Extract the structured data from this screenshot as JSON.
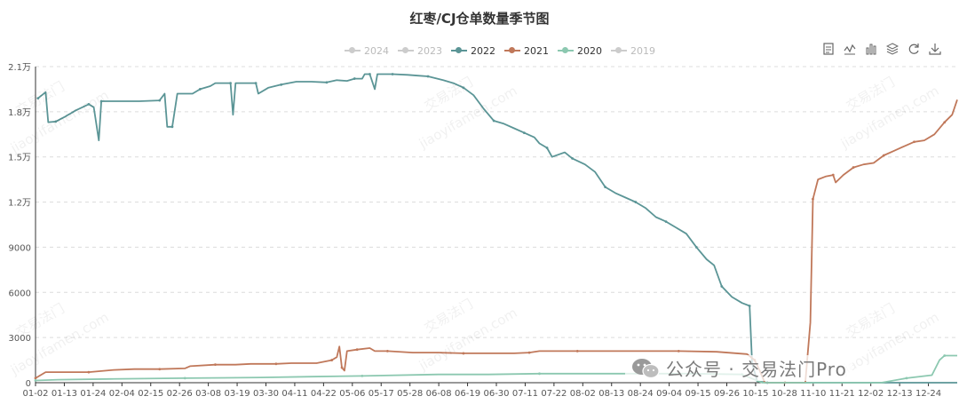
{
  "chart_data": {
    "type": "line",
    "title": "红枣/CJ仓单数量季节图",
    "xlabel": "",
    "ylabel": "",
    "ylim": [
      0,
      21000
    ],
    "y_ticks": [
      0,
      3000,
      6000,
      9000,
      12000,
      15000,
      18000,
      21000
    ],
    "y_tick_labels": [
      "0",
      "3000",
      "6000",
      "9000",
      "1.2万",
      "1.5万",
      "1.8万",
      "2.1万"
    ],
    "x_range_days": [
      1,
      365
    ],
    "x_tick_labels": [
      "01-02",
      "01-13",
      "01-24",
      "02-04",
      "02-15",
      "02-26",
      "03-08",
      "03-19",
      "03-30",
      "04-11",
      "04-22",
      "05-06",
      "05-17",
      "05-28",
      "06-08",
      "06-19",
      "06-30",
      "07-11",
      "07-22",
      "08-02",
      "08-13",
      "08-24",
      "09-04",
      "09-15",
      "09-26",
      "10-15",
      "10-28",
      "11-10",
      "11-21",
      "12-02",
      "12-13",
      "12-24"
    ],
    "grid": true,
    "legend_position": "top-center",
    "series": [
      {
        "name": "2024",
        "visible": false,
        "color": "#cccccc",
        "points": []
      },
      {
        "name": "2023",
        "visible": false,
        "color": "#cccccc",
        "points": []
      },
      {
        "name": "2022",
        "visible": true,
        "color": "#5b9596",
        "points": [
          [
            2,
            18900
          ],
          [
            5,
            19300
          ],
          [
            6,
            17300
          ],
          [
            9,
            17350
          ],
          [
            13,
            17700
          ],
          [
            17,
            18100
          ],
          [
            22,
            18500
          ],
          [
            24,
            18300
          ],
          [
            26,
            16100
          ],
          [
            27,
            18700
          ],
          [
            35,
            18700
          ],
          [
            42,
            18700
          ],
          [
            50,
            18750
          ],
          [
            52,
            19200
          ],
          [
            53,
            17000
          ],
          [
            55,
            17000
          ],
          [
            57,
            19200
          ],
          [
            63,
            19200
          ],
          [
            66,
            19500
          ],
          [
            70,
            19700
          ],
          [
            72,
            19900
          ],
          [
            78,
            19900
          ],
          [
            79,
            17800
          ],
          [
            80,
            19900
          ],
          [
            88,
            19900
          ],
          [
            89,
            19200
          ],
          [
            93,
            19600
          ],
          [
            98,
            19800
          ],
          [
            104,
            20000
          ],
          [
            110,
            20000
          ],
          [
            116,
            19950
          ],
          [
            120,
            20100
          ],
          [
            124,
            20050
          ],
          [
            127,
            20200
          ],
          [
            130,
            20200
          ],
          [
            131,
            20500
          ],
          [
            133,
            20500
          ],
          [
            135,
            19500
          ],
          [
            136,
            20500
          ],
          [
            142,
            20500
          ],
          [
            148,
            20450
          ],
          [
            152,
            20400
          ],
          [
            156,
            20350
          ],
          [
            162,
            20100
          ],
          [
            166,
            19900
          ],
          [
            170,
            19600
          ],
          [
            174,
            19100
          ],
          [
            178,
            18200
          ],
          [
            182,
            17400
          ],
          [
            186,
            17200
          ],
          [
            190,
            16900
          ],
          [
            194,
            16600
          ],
          [
            198,
            16300
          ],
          [
            200,
            15900
          ],
          [
            203,
            15600
          ],
          [
            205,
            15000
          ],
          [
            210,
            15300
          ],
          [
            213,
            14900
          ],
          [
            218,
            14500
          ],
          [
            222,
            14000
          ],
          [
            226,
            13000
          ],
          [
            230,
            12600
          ],
          [
            234,
            12300
          ],
          [
            238,
            12000
          ],
          [
            242,
            11600
          ],
          [
            246,
            11000
          ],
          [
            250,
            10700
          ],
          [
            254,
            10300
          ],
          [
            258,
            9900
          ],
          [
            262,
            9000
          ],
          [
            266,
            8200
          ],
          [
            269,
            7800
          ],
          [
            272,
            6400
          ],
          [
            276,
            5700
          ],
          [
            280,
            5300
          ],
          [
            283,
            5100
          ],
          [
            284,
            1300
          ],
          [
            286,
            100
          ],
          [
            290,
            0
          ],
          [
            365,
            0
          ]
        ]
      },
      {
        "name": "2021",
        "visible": true,
        "color": "#c0785a",
        "points": [
          [
            1,
            300
          ],
          [
            5,
            700
          ],
          [
            12,
            700
          ],
          [
            22,
            700
          ],
          [
            32,
            850
          ],
          [
            40,
            900
          ],
          [
            50,
            900
          ],
          [
            60,
            950
          ],
          [
            62,
            1100
          ],
          [
            72,
            1200
          ],
          [
            80,
            1200
          ],
          [
            86,
            1250
          ],
          [
            96,
            1250
          ],
          [
            102,
            1300
          ],
          [
            112,
            1300
          ],
          [
            118,
            1500
          ],
          [
            120,
            1700
          ],
          [
            121,
            2400
          ],
          [
            122,
            1000
          ],
          [
            123,
            800
          ],
          [
            124,
            2100
          ],
          [
            128,
            2200
          ],
          [
            133,
            2300
          ],
          [
            135,
            2100
          ],
          [
            140,
            2100
          ],
          [
            150,
            2000
          ],
          [
            160,
            2000
          ],
          [
            170,
            1950
          ],
          [
            180,
            1950
          ],
          [
            190,
            1950
          ],
          [
            196,
            2000
          ],
          [
            200,
            2100
          ],
          [
            205,
            2100
          ],
          [
            215,
            2100
          ],
          [
            225,
            2100
          ],
          [
            240,
            2100
          ],
          [
            255,
            2100
          ],
          [
            270,
            2050
          ],
          [
            282,
            1900
          ],
          [
            285,
            1500
          ],
          [
            287,
            800
          ],
          [
            289,
            0
          ],
          [
            297,
            0
          ],
          [
            305,
            0
          ],
          [
            307,
            4000
          ],
          [
            308,
            12200
          ],
          [
            310,
            13500
          ],
          [
            313,
            13700
          ],
          [
            316,
            13800
          ],
          [
            317,
            13300
          ],
          [
            320,
            13800
          ],
          [
            324,
            14300
          ],
          [
            328,
            14500
          ],
          [
            332,
            14600
          ],
          [
            336,
            15100
          ],
          [
            340,
            15400
          ],
          [
            344,
            15700
          ],
          [
            348,
            16000
          ],
          [
            352,
            16100
          ],
          [
            356,
            16500
          ],
          [
            360,
            17300
          ],
          [
            363,
            17800
          ],
          [
            365,
            18800
          ]
        ]
      },
      {
        "name": "2020",
        "visible": true,
        "color": "#8cc8b0",
        "points": [
          [
            1,
            150
          ],
          [
            10,
            200
          ],
          [
            30,
            250
          ],
          [
            60,
            300
          ],
          [
            90,
            350
          ],
          [
            110,
            400
          ],
          [
            130,
            450
          ],
          [
            160,
            550
          ],
          [
            180,
            550
          ],
          [
            200,
            600
          ],
          [
            230,
            600
          ],
          [
            260,
            600
          ],
          [
            280,
            550
          ],
          [
            288,
            0
          ],
          [
            335,
            0
          ],
          [
            345,
            300
          ],
          [
            355,
            500
          ],
          [
            358,
            1500
          ],
          [
            360,
            1800
          ],
          [
            365,
            1800
          ]
        ]
      },
      {
        "name": "2019",
        "visible": false,
        "color": "#cccccc",
        "points": []
      }
    ]
  },
  "toolbox": [
    "data-view-icon",
    "line-chart-icon",
    "bar-chart-icon",
    "stack-icon",
    "restore-icon",
    "save-image-icon"
  ],
  "watermark": {
    "cn": "交易法门",
    "en": "jiaoyifamen.com"
  },
  "badge": {
    "text": "公众号 · 交易法门Pro"
  }
}
